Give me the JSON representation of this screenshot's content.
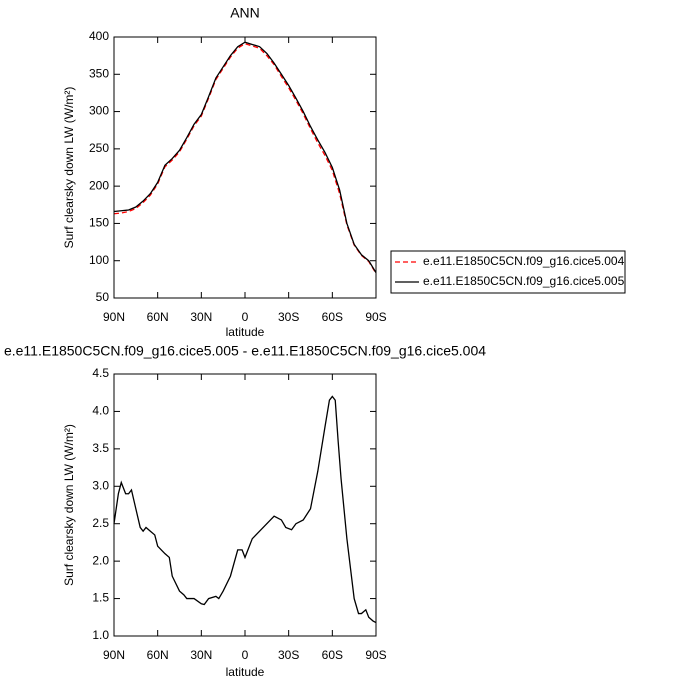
{
  "chart_data": [
    {
      "type": "line",
      "title": "ANN",
      "xlabel": "latitude",
      "ylabel": "Surf clearsky down LW (W/m²)",
      "x": [
        90,
        85,
        80,
        75,
        70,
        65,
        60,
        55,
        50,
        45,
        40,
        35,
        30,
        25,
        20,
        15,
        10,
        5,
        0,
        -5,
        -10,
        -15,
        -20,
        -25,
        -30,
        -35,
        -40,
        -45,
        -50,
        -55,
        -60,
        -65,
        -70,
        -75,
        -80,
        -85,
        -90
      ],
      "series": [
        {
          "name": "e.e11.E1850C5CN.f09_g16.cice5.004",
          "color": "#ff0000",
          "dashed": true,
          "values": [
            163,
            164,
            166,
            170,
            178,
            188,
            203,
            226,
            235,
            246,
            263,
            281,
            294,
            318,
            343,
            358,
            373,
            385,
            391,
            388,
            385,
            375,
            363,
            347,
            332,
            315,
            297,
            277,
            258,
            241,
            221,
            190,
            148,
            121,
            107,
            99,
            83
          ]
        },
        {
          "name": "e.e11.E1850C5CN.f09_g16.cice5.005",
          "color": "#000000",
          "dashed": false,
          "values": [
            166,
            167,
            168,
            172,
            180,
            190,
            205,
            228,
            237,
            248,
            265,
            283,
            296,
            320,
            345,
            360,
            375,
            387,
            393,
            390,
            387,
            378,
            365,
            350,
            335,
            318,
            300,
            280,
            262,
            245,
            225,
            195,
            150,
            122,
            108,
            100,
            84
          ]
        }
      ],
      "xlim": [
        90,
        -90
      ],
      "xticks": [
        {
          "value": 90,
          "label": "90N"
        },
        {
          "value": 60,
          "label": "60N"
        },
        {
          "value": 30,
          "label": "30N"
        },
        0,
        {
          "value": -30,
          "label": "30S"
        },
        {
          "value": -60,
          "label": "60S"
        },
        {
          "value": -90,
          "label": "90S"
        }
      ],
      "ylim": [
        50,
        400
      ],
      "yticks": [
        50,
        100,
        150,
        200,
        250,
        300,
        350,
        400
      ],
      "legend": "right"
    },
    {
      "type": "line",
      "title": "e.e11.E1850C5CN.f09_g16.cice5.005 - e.e11.E1850C5CN.f09_g16.cice5.004",
      "xlabel": "latitude",
      "ylabel": "Surf clearsky down LW (W/m²)",
      "x": [
        90,
        87,
        85,
        82,
        80,
        78,
        75,
        72,
        70,
        68,
        65,
        62,
        60,
        55,
        52,
        50,
        45,
        42,
        40,
        35,
        30,
        28,
        25,
        20,
        18,
        15,
        10,
        5,
        2,
        0,
        -5,
        -10,
        -15,
        -20,
        -25,
        -28,
        -32,
        -35,
        -40,
        -45,
        -50,
        -55,
        -58,
        -60,
        -62,
        -64,
        -66,
        -70,
        -75,
        -78,
        -80,
        -83,
        -85,
        -88,
        -90
      ],
      "series": [
        {
          "color": "#000000",
          "dashed": false,
          "values": [
            2.5,
            2.9,
            3.05,
            2.9,
            2.9,
            2.95,
            2.7,
            2.45,
            2.4,
            2.45,
            2.4,
            2.35,
            2.2,
            2.1,
            2.05,
            1.8,
            1.6,
            1.55,
            1.5,
            1.5,
            1.43,
            1.42,
            1.5,
            1.53,
            1.5,
            1.6,
            1.8,
            2.15,
            2.15,
            2.05,
            2.3,
            2.4,
            2.5,
            2.6,
            2.55,
            2.45,
            2.42,
            2.5,
            2.55,
            2.7,
            3.2,
            3.8,
            4.15,
            4.2,
            4.15,
            3.6,
            3.1,
            2.3,
            1.5,
            1.3,
            1.3,
            1.35,
            1.25,
            1.2,
            1.18
          ]
        }
      ],
      "xlim": [
        90,
        -90
      ],
      "xticks": [
        {
          "value": 90,
          "label": "90N"
        },
        {
          "value": 60,
          "label": "60N"
        },
        {
          "value": 30,
          "label": "30N"
        },
        0,
        {
          "value": -30,
          "label": "30S"
        },
        {
          "value": -60,
          "label": "60S"
        },
        {
          "value": -90,
          "label": "90S"
        }
      ],
      "ylim": [
        1,
        4.5
      ],
      "yticks": [
        {
          "value": 1,
          "label": "1.0"
        },
        1.5,
        {
          "value": 2,
          "label": "2.0"
        },
        2.5,
        {
          "value": 3,
          "label": "3.0"
        },
        3.5,
        {
          "value": 4,
          "label": "4.0"
        },
        4.5
      ]
    }
  ]
}
